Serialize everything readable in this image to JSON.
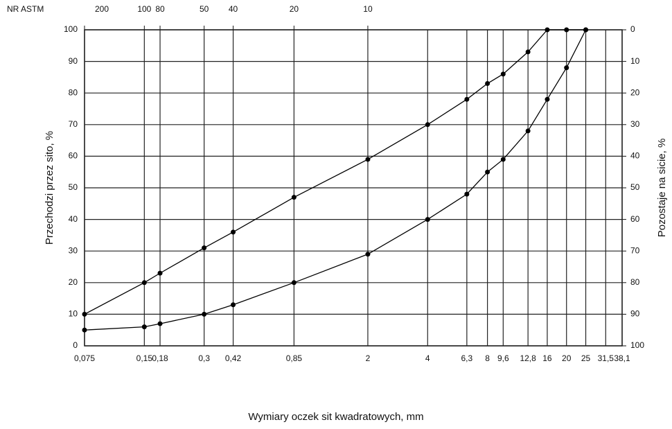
{
  "chart_data": {
    "type": "line",
    "xlabel": "Wymiary oczek sit kwadratowych, mm",
    "ylabel": "Przechodzi przez sito, %",
    "y2label": "Pozostaje na sicie, %",
    "x2label": "NR ASTM",
    "xscale": "log",
    "grid": true,
    "x": [
      0.075,
      0.15,
      0.18,
      0.3,
      0.42,
      0.85,
      2,
      4,
      6.3,
      8,
      9.6,
      12.8,
      16,
      20,
      25
    ],
    "series": [
      {
        "color": "#000000",
        "values": [
          10,
          20,
          23,
          31,
          36,
          47,
          59,
          70,
          78,
          83,
          86,
          93,
          100,
          100,
          100
        ]
      },
      {
        "color": "#000000",
        "values": [
          5,
          6,
          7,
          10,
          13,
          20,
          29,
          40,
          48,
          55,
          59,
          68,
          78,
          88,
          100
        ]
      }
    ],
    "xlim": [
      0.075,
      38.1
    ],
    "xticks": [
      {
        "value": 0.075,
        "label": "0,075"
      },
      {
        "value": 0.15,
        "label": "0,15"
      },
      {
        "value": 0.18,
        "label": "0,18"
      },
      {
        "value": 0.3,
        "label": "0,3"
      },
      {
        "value": 0.42,
        "label": "0,42"
      },
      {
        "value": 0.85,
        "label": "0,85"
      },
      2,
      4,
      {
        "value": 6.3,
        "label": "6,3"
      },
      8,
      {
        "value": 9.6,
        "label": "9,6"
      },
      {
        "value": 12.8,
        "label": "12,8"
      },
      16,
      20,
      25,
      {
        "value": 31.5,
        "label": "31,5"
      },
      {
        "value": 38.1,
        "label": "38,1"
      }
    ],
    "x2ticks": [
      {
        "value": 0.075,
        "label": "200"
      },
      {
        "value": 0.15,
        "label": "100"
      },
      {
        "value": 0.18,
        "label": "80"
      },
      {
        "value": 0.3,
        "label": "50"
      },
      {
        "value": 0.42,
        "label": "40"
      },
      {
        "value": 0.85,
        "label": "20"
      },
      {
        "value": 2,
        "label": "10"
      }
    ],
    "ylim": [
      0,
      100
    ],
    "yticks": [
      0,
      10,
      20,
      30,
      40,
      50,
      60,
      70,
      80,
      90,
      100
    ],
    "y2lim": [
      100,
      0
    ],
    "y2ticks": [
      0,
      10,
      20,
      30,
      40,
      50,
      60,
      70,
      80,
      90,
      100
    ]
  }
}
